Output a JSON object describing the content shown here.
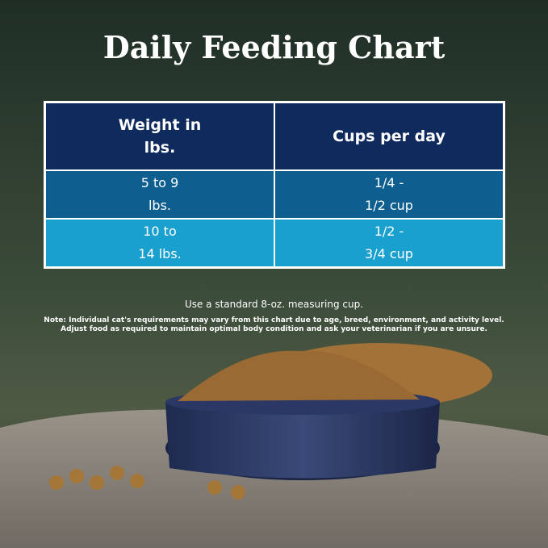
{
  "header": {
    "title": "Daily Feeding Chart"
  },
  "table": {
    "columns": [
      "Weight in lbs.",
      "Cups per day"
    ],
    "rows": [
      [
        "5 to 9 lbs.",
        "1/4 - 1/2 cup"
      ],
      [
        "10 to 14 lbs.",
        "1/2 - 3/4 cup"
      ]
    ]
  },
  "footer": {
    "instruction": "Use a standard 8-oz. measuring cup.",
    "notes": [
      "Note: Individual cat's requirements may vary from this chart due to age, breed, environment, and activity level.",
      "Adjust food as required to maintain optimal body condition and ask your veterinarian if you are unsure."
    ]
  }
}
